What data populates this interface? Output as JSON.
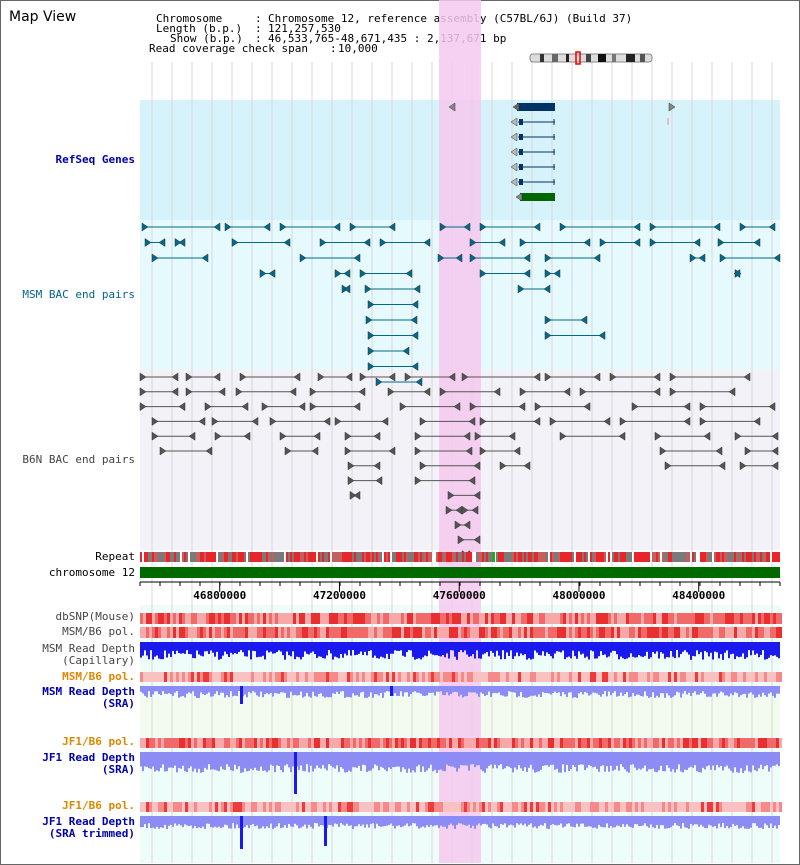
{
  "page": {
    "title": "Map View"
  },
  "info": {
    "chromosome_label": "Chromosome",
    "chromosome_value": "Chromosome 12, reference assembly (C57BL/6J) (Build 37)",
    "length_label": "Length (b.p.)",
    "length_value": "121,257,530",
    "show_label": "Show (b.p.)",
    "show_value": "46,533,765-48,671,435 : 2,137,671 bp",
    "coverage_label": "Read coverage check span",
    "coverage_value": "10,000"
  },
  "tracks": {
    "refseq": "RefSeq Genes",
    "msm_bac": "MSM BAC end pairs",
    "b6n_bac": "B6N BAC end pairs",
    "repeat": "Repeat",
    "chromosome": "chromosome 12",
    "dbsnp": "dbSNP(Mouse)",
    "msm_b6_pol": "MSM/B6 pol.",
    "msm_depth_cap": "MSM Read Depth\n(Capillary)",
    "msm_b6_pol2": "MSM/B6 pol.",
    "msm_depth_sra": "MSM Read Depth\n(SRA)",
    "jf1_b6_pol": "JF1/B6 pol.",
    "jf1_depth_sra": "JF1 Read Depth\n(SRA)",
    "jf1_b6_pol2": "JF1/B6 pol.",
    "jf1_depth_trim": "JF1 Read Depth\n(SRA trimmed)"
  },
  "axis": {
    "ticks": [
      {
        "pos": 46800000,
        "label": "46800000"
      },
      {
        "pos": 47200000,
        "label": "47200000"
      },
      {
        "pos": 47600000,
        "label": "47600000"
      },
      {
        "pos": 48000000,
        "label": "48000000"
      },
      {
        "pos": 48400000,
        "label": "48400000"
      }
    ],
    "range": [
      46533765,
      48671435
    ]
  },
  "colors": {
    "highlight": "#f5c9ee",
    "refseq_bg": "#d6f2fb",
    "msm_bg": "#e6f9fc",
    "b6n_bg": "#f2f2f8",
    "lower_bg": "#eefcfa",
    "sra_bg": "#f2fbee",
    "gene_navy": "#003366",
    "gene_green": "#006600",
    "bac_teal": "#006a8a",
    "bac_gray": "#555555",
    "depth_blue": "#1a1aee",
    "depth_light": "#8c8cf4",
    "pol_red": "#ee4444",
    "chrom_green": "#006a00"
  }
}
